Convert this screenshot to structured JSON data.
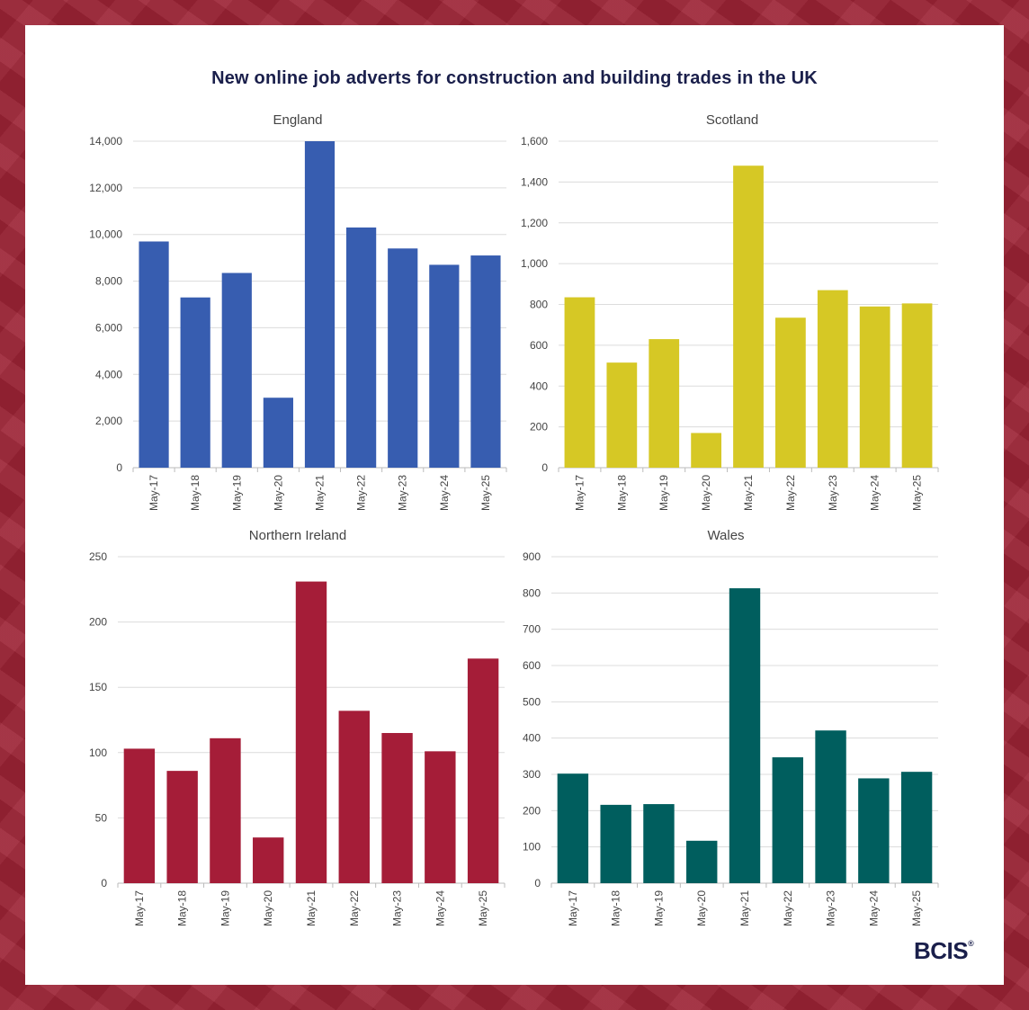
{
  "title": "New online job adverts for construction and building trades in the UK",
  "logo": "BCIS",
  "logo_mark": "®",
  "chart_data": [
    {
      "type": "bar",
      "title": "England",
      "color": "#375db0",
      "categories": [
        "May-17",
        "May-18",
        "May-19",
        "May-20",
        "May-21",
        "May-22",
        "May-23",
        "May-24",
        "May-25"
      ],
      "values": [
        9700,
        7300,
        8350,
        3000,
        14000,
        10300,
        9400,
        8700,
        9100
      ],
      "ylim": [
        0,
        14000
      ],
      "yticks": [
        0,
        2000,
        4000,
        6000,
        8000,
        10000,
        12000,
        14000
      ],
      "ytick_labels": [
        "0",
        "2,000",
        "4,000",
        "6,000",
        "8,000",
        "10,000",
        "12,000",
        "14,000"
      ],
      "grid": true
    },
    {
      "type": "bar",
      "title": "Scotland",
      "color": "#d6c825",
      "categories": [
        "May-17",
        "May-18",
        "May-19",
        "May-20",
        "May-21",
        "May-22",
        "May-23",
        "May-24",
        "May-25"
      ],
      "values": [
        835,
        515,
        630,
        170,
        1480,
        735,
        870,
        790,
        805
      ],
      "ylim": [
        0,
        1600
      ],
      "yticks": [
        0,
        200,
        400,
        600,
        800,
        1000,
        1200,
        1400,
        1600
      ],
      "ytick_labels": [
        "0",
        "200",
        "400",
        "600",
        "800",
        "1,000",
        "1,200",
        "1,400",
        "1,600"
      ],
      "grid": true
    },
    {
      "type": "bar",
      "title": "Northern Ireland",
      "color": "#a51d38",
      "categories": [
        "May-17",
        "May-18",
        "May-19",
        "May-20",
        "May-21",
        "May-22",
        "May-23",
        "May-24",
        "May-25"
      ],
      "values": [
        103,
        86,
        111,
        35,
        231,
        132,
        115,
        101,
        172
      ],
      "ylim": [
        0,
        250
      ],
      "yticks": [
        0,
        50,
        100,
        150,
        200,
        250
      ],
      "ytick_labels": [
        "0",
        "50",
        "100",
        "150",
        "200",
        "250"
      ],
      "grid": true
    },
    {
      "type": "bar",
      "title": "Wales",
      "color": "#005e5e",
      "categories": [
        "May-17",
        "May-18",
        "May-19",
        "May-20",
        "May-21",
        "May-22",
        "May-23",
        "May-24",
        "May-25"
      ],
      "values": [
        302,
        216,
        218,
        117,
        813,
        347,
        421,
        289,
        307
      ],
      "ylim": [
        0,
        900
      ],
      "yticks": [
        0,
        100,
        200,
        300,
        400,
        500,
        600,
        700,
        800,
        900
      ],
      "ytick_labels": [
        "0",
        "100",
        "200",
        "300",
        "400",
        "500",
        "600",
        "700",
        "800",
        "900"
      ],
      "grid": true
    }
  ]
}
